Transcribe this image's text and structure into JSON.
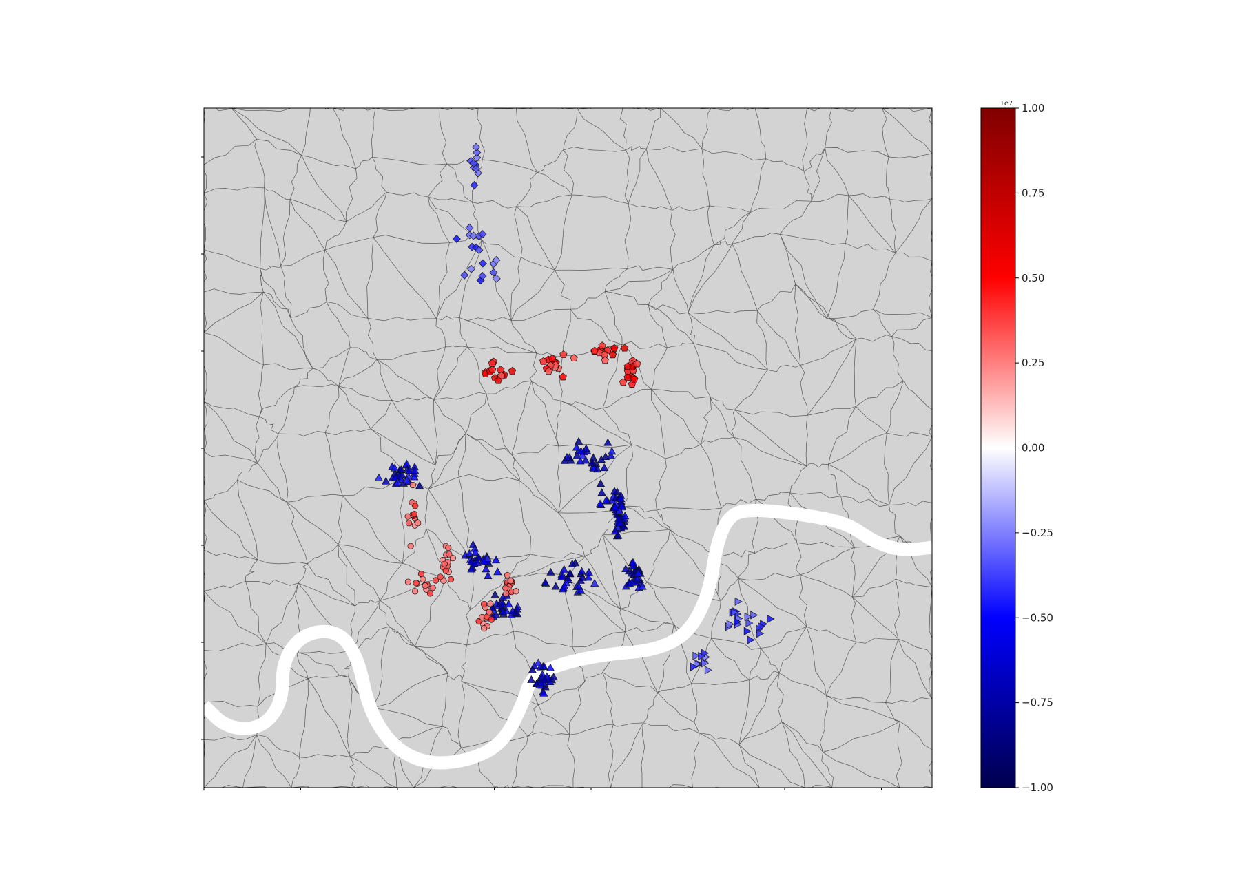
{
  "colorbar": {
    "offset_label": "1e7",
    "ticks": [
      {
        "value": 1.0,
        "label": "1.00"
      },
      {
        "value": 0.75,
        "label": "0.75"
      },
      {
        "value": 0.5,
        "label": "0.50"
      },
      {
        "value": 0.25,
        "label": "0.25"
      },
      {
        "value": 0.0,
        "label": "0.00"
      },
      {
        "value": -0.25,
        "label": "−0.25"
      },
      {
        "value": -0.5,
        "label": "−0.50"
      },
      {
        "value": -0.75,
        "label": "−0.75"
      },
      {
        "value": -1.0,
        "label": "−1.00"
      }
    ],
    "colormap": "seismic",
    "stops": [
      "#00004d",
      "#0000ff",
      "#ffffff",
      "#ff0000",
      "#800000"
    ]
  },
  "map": {
    "background_color": "#d3d3d3",
    "boundary_color": "#555555",
    "river_color": "#ffffff",
    "x_tick_count": 8,
    "y_tick_count": 7,
    "tick_labels_visible": false
  },
  "chart_data": {
    "type": "scatter",
    "title": "",
    "xlabel": "",
    "ylabel": "",
    "color_scale_range": [
      -10000000,
      10000000
    ],
    "series": [
      {
        "marker": "diamond",
        "approx_value": -4000000,
        "count": 28
      },
      {
        "marker": "pentagon",
        "approx_value": 5000000,
        "count": 60
      },
      {
        "marker": "triangle-up",
        "approx_value": -7000000,
        "count": 260
      },
      {
        "marker": "circle",
        "approx_value": 3500000,
        "count": 70
      },
      {
        "marker": "triangle-right",
        "approx_value": -4000000,
        "count": 30
      }
    ]
  }
}
